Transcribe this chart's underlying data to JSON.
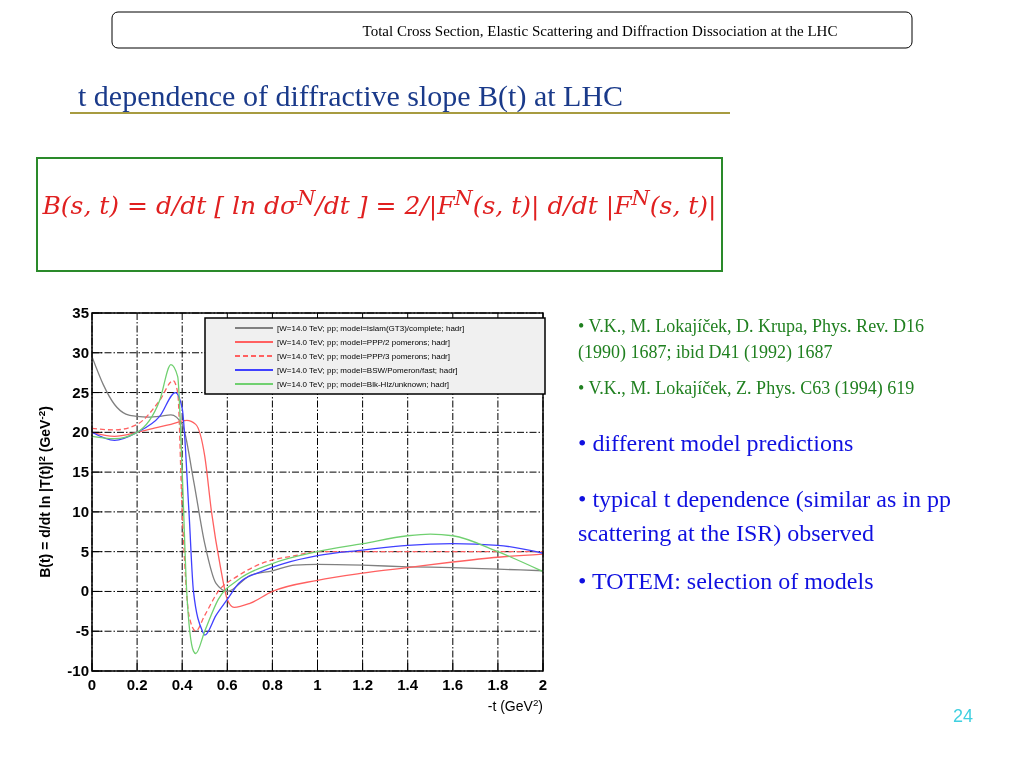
{
  "chart_data": {
    "type": "line",
    "title": "t dependence of diffractive slope  B(t) at LHC",
    "xlabel": "-t   (GeV$^{2}$)",
    "ylabel": "B(t) = d/dt ln |T(t)|$^{2}$   (GeV$^{-2}$)",
    "xlim": [
      0,
      2
    ],
    "xticks": [
      0,
      0.2,
      0.4,
      0.6,
      0.8,
      1,
      1.2,
      1.4,
      1.6,
      1.8,
      2
    ],
    "ylim": [
      -10,
      35
    ],
    "yticks": [
      -10,
      -5,
      0,
      5,
      10,
      15,
      20,
      25,
      30,
      35
    ],
    "grid": true,
    "legend": "top right",
    "series": [
      {
        "name": "[W=14.0 TeV; pp; model=Islam(GT3)/complete; hadr]",
        "color": "#808080",
        "line_style": "solid",
        "x": [
          0,
          0.05,
          0.1,
          0.15,
          0.2,
          0.25,
          0.3,
          0.35,
          0.4,
          0.45,
          0.5,
          0.55,
          0.6,
          0.7,
          0.8,
          0.9,
          1.0,
          1.2,
          1.4,
          1.6,
          1.8,
          2.0
        ],
        "values": [
          29.5,
          26,
          23.5,
          22.3,
          22,
          21.9,
          22,
          22.2,
          21,
          14,
          6,
          1,
          0,
          2,
          2.6,
          3.3,
          3.4,
          3.3,
          3.1,
          3.0,
          2.8,
          2.6
        ]
      },
      {
        "name": "[W=14.0 TeV; pp; model=PPP/2 pomerons; hadr]",
        "color": "#ff6060",
        "line_style": "solid",
        "x": [
          0,
          0.1,
          0.2,
          0.3,
          0.35,
          0.42,
          0.46,
          0.5,
          0.53,
          0.57,
          0.6,
          0.63,
          0.7,
          0.8,
          1.0,
          1.2,
          1.4,
          1.6,
          1.8,
          2.0
        ],
        "values": [
          20,
          19.5,
          20,
          20.7,
          21,
          21.5,
          21,
          17,
          10,
          3,
          -1,
          -2,
          -1.5,
          0,
          1.4,
          2.3,
          3.0,
          3.7,
          4.3,
          4.7
        ]
      },
      {
        "name": "[W=14.0 TeV; pp; model=PPP/3 pomerons; hadr]",
        "color": "#ff6060",
        "line_style": "dashed",
        "x": [
          0,
          0.1,
          0.2,
          0.3,
          0.36,
          0.38,
          0.4,
          0.43,
          0.46,
          0.5,
          0.56,
          0.65,
          0.75,
          0.9,
          1.0,
          1.2,
          1.4,
          1.6,
          1.8,
          2.0
        ],
        "values": [
          20.5,
          20.3,
          21,
          24,
          26.5,
          25,
          10,
          -3,
          -5,
          -3,
          0,
          2,
          3.5,
          4.5,
          5,
          5,
          5,
          5,
          5,
          5
        ]
      },
      {
        "name": "[W=14.0 TeV; pp; model=BSW/Pomeron/fast; hadr]",
        "color": "#4040ff",
        "line_style": "solid",
        "x": [
          0,
          0.1,
          0.2,
          0.3,
          0.37,
          0.4,
          0.43,
          0.45,
          0.49,
          0.5,
          0.55,
          0.6,
          0.65,
          0.75,
          0.85,
          1.0,
          1.2,
          1.4,
          1.6,
          1.8,
          2.0
        ],
        "values": [
          20,
          19,
          20,
          22,
          25,
          23,
          10,
          0,
          -5,
          -5.5,
          -3,
          -1,
          1,
          2.5,
          3.5,
          4.5,
          5.2,
          5.8,
          6,
          5.8,
          4.8
        ]
      },
      {
        "name": "[W=14.0 TeV; pp; model=Blk-Hlz/unknown; hadr]",
        "color": "#70d070",
        "line_style": "solid",
        "x": [
          0,
          0.1,
          0.2,
          0.3,
          0.35,
          0.38,
          0.4,
          0.42,
          0.45,
          0.46,
          0.5,
          0.56,
          0.65,
          0.8,
          1.0,
          1.2,
          1.4,
          1.5,
          1.6,
          1.8,
          2.0
        ],
        "values": [
          19.5,
          19.2,
          20,
          24,
          28.5,
          27,
          15,
          0,
          -7.5,
          -7.8,
          -5,
          -1,
          1.5,
          3.5,
          5,
          6,
          7,
          7.2,
          7,
          5,
          2.5
        ]
      }
    ],
    "annotations": [
      "Total Cross Section, Elastic Scattering and Diffraction Dissociation at the LHC",
      "B(s, t) = d/dt [ ln dσ$^{N}$/dt ] = 2/|F$^{N}$(s, t)| d/dt |F$^{N}$(s, t)|",
      "• V.K., M. Lokajíček, D. Krupa, Phys. Rev. D16 (1990) 1687; ibid D41 (1992) 1687",
      "• V.K., M. Lokajíček, Z. Phys. C63 (1994) 619",
      "• different model predictions",
      "•  typical  t  dependence (similar as in pp scattering at the ISR) observed",
      "•  TOTEM: selection of models",
      "24"
    ]
  }
}
